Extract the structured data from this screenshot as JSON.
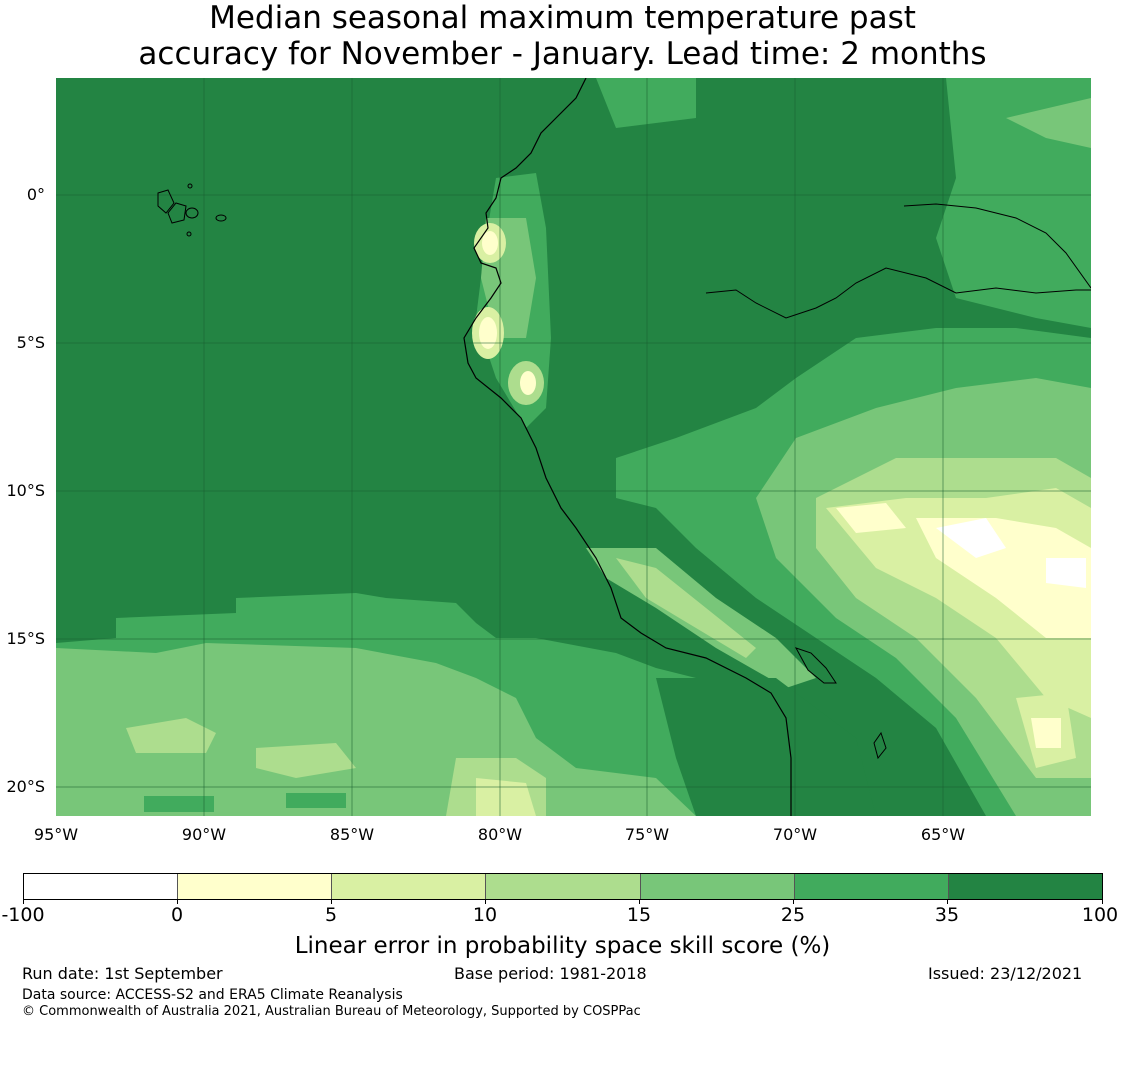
{
  "title": {
    "line1": "Median seasonal maximum temperature past",
    "line2": "accuracy for November - January. Lead time: 2 months"
  },
  "map": {
    "lat_labels": [
      "0°",
      "5°S",
      "10°S",
      "15°S",
      "20°S"
    ],
    "lon_labels": [
      "95°W",
      "90°W",
      "85°W",
      "80°W",
      "75°W",
      "70°W",
      "65°W"
    ]
  },
  "colorbar": {
    "ticks": [
      "-100",
      "0",
      "5",
      "10",
      "15",
      "25",
      "35",
      "100"
    ],
    "colors": [
      "#ffffff",
      "#ffffcc",
      "#d9f0a3",
      "#addd8e",
      "#78c679",
      "#41ab5d",
      "#238443"
    ],
    "label": "Linear error in probability space skill score (%)"
  },
  "footer": {
    "run_date": "Run date: 1st September",
    "base_period": "Base period: 1981-2018",
    "issued": "Issued: 23/12/2021",
    "data_source": "Data source: ACCESS-S2 and ERA5 Climate Reanalysis",
    "copyright": "© Commonwealth of Australia 2021, Australian Bureau of Meteorology, Supported by COSPPac"
  }
}
